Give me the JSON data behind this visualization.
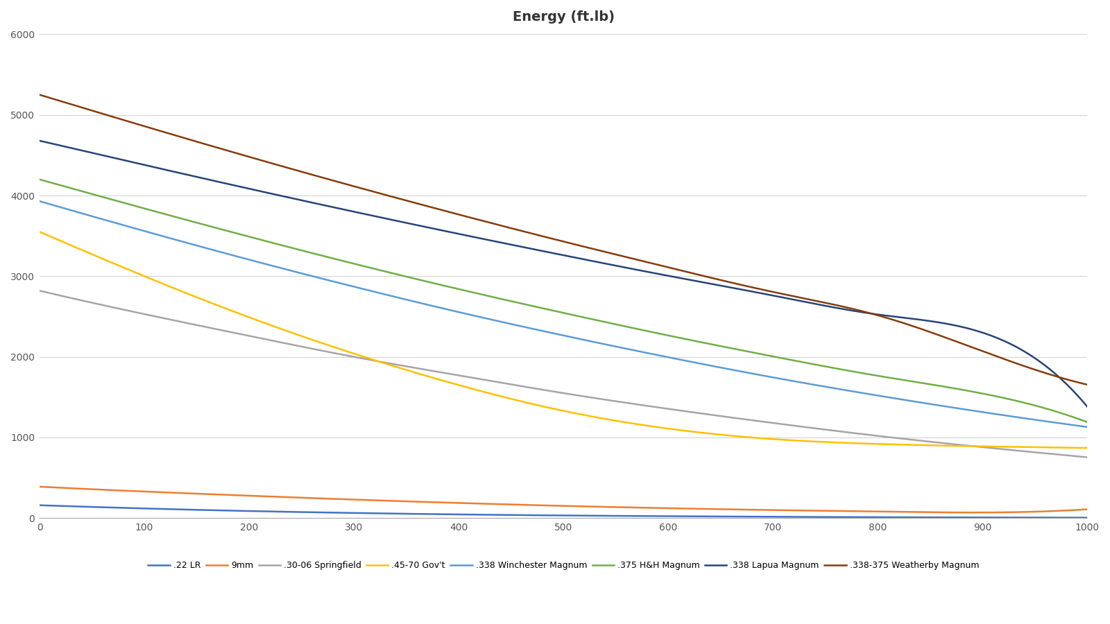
{
  "title": "Energy (ft.lb)",
  "x_min": 0,
  "x_max": 1000,
  "y_min": 0,
  "y_max": 6000,
  "y_ticks": [
    0,
    1000,
    2000,
    3000,
    4000,
    5000,
    6000
  ],
  "x_ticks": [
    0,
    100,
    200,
    300,
    400,
    500,
    600,
    700,
    800,
    900,
    1000
  ],
  "series": [
    {
      "label": ".22 LR",
      "color": "#4472C4",
      "x": [
        0,
        100,
        200,
        300,
        400,
        500,
        600,
        700,
        800,
        900,
        1000
      ],
      "y": [
        160,
        120,
        88,
        64,
        46,
        33,
        24,
        17,
        12,
        9,
        6
      ]
    },
    {
      "label": "9mm",
      "color": "#ED7D31",
      "x": [
        0,
        100,
        200,
        300,
        400,
        500,
        600,
        700,
        800,
        900,
        1000
      ],
      "y": [
        390,
        330,
        278,
        230,
        188,
        152,
        123,
        100,
        82,
        70,
        110
      ]
    },
    {
      "label": ".30-06 Springfield",
      "color": "#A5A5A5",
      "x": [
        0,
        100,
        200,
        300,
        400,
        500,
        600,
        700,
        800,
        900,
        1000
      ],
      "y": [
        2820,
        2530,
        2260,
        2000,
        1770,
        1550,
        1355,
        1180,
        1020,
        880,
        755
      ]
    },
    {
      "label": ".45-70 Gov't",
      "color": "#FFC000",
      "x": [
        0,
        100,
        200,
        300,
        400,
        500,
        600,
        700,
        800,
        900,
        1000
      ],
      "y": [
        3550,
        3000,
        2490,
        2040,
        1650,
        1330,
        1110,
        980,
        920,
        890,
        870
      ]
    },
    {
      "label": ".338 Winchester Magnum",
      "color": "#5B9BD5",
      "x": [
        0,
        100,
        200,
        300,
        400,
        500,
        600,
        700,
        800,
        900,
        1000
      ],
      "y": [
        3930,
        3560,
        3205,
        2870,
        2555,
        2265,
        1995,
        1745,
        1520,
        1315,
        1130
      ]
    },
    {
      "label": ".375 H&H Magnum",
      "color": "#70AD47",
      "x": [
        0,
        100,
        200,
        300,
        400,
        500,
        600,
        700,
        800,
        900,
        1000
      ],
      "y": [
        4200,
        3840,
        3490,
        3155,
        2840,
        2545,
        2265,
        2005,
        1765,
        1545,
        1190
      ]
    },
    {
      "label": ".338 Lapua Magnum",
      "color": "#264478",
      "x": [
        0,
        100,
        200,
        300,
        400,
        500,
        600,
        700,
        800,
        900,
        1000
      ],
      "y": [
        4680,
        4380,
        4085,
        3800,
        3525,
        3260,
        3005,
        2760,
        2525,
        2300,
        1380
      ]
    },
    {
      "label": ".338-375 Weatherby Magnum",
      "color": "#843C0C",
      "x": [
        0,
        100,
        200,
        300,
        400,
        500,
        600,
        700,
        800,
        900,
        1000
      ],
      "y": [
        5250,
        4860,
        4480,
        4115,
        3765,
        3430,
        3110,
        2805,
        2515,
        2070,
        1655
      ]
    }
  ],
  "background_color": "#FFFFFF",
  "grid_color": "#D3D3D3",
  "title_fontsize": 14,
  "legend_fontsize": 9
}
